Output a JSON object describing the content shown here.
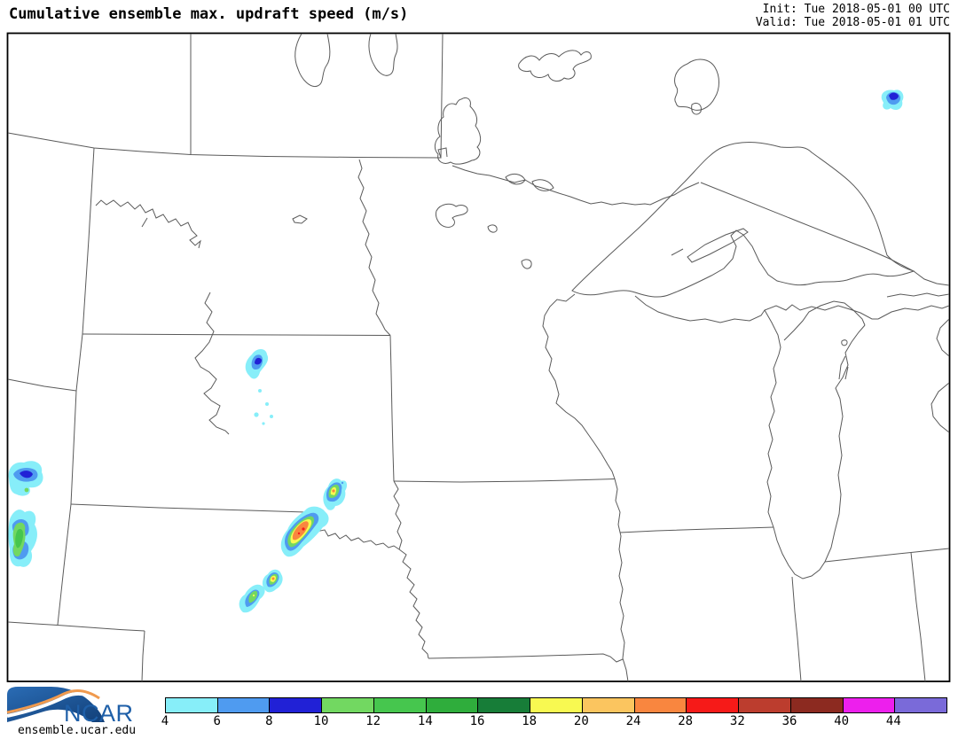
{
  "header": {
    "title": "Cumulative ensemble max. updraft speed (m/s)",
    "init_line": "Init: Tue 2018-05-01 00 UTC",
    "valid_line": "Valid: Tue 2018-05-01 01 UTC"
  },
  "footer": {
    "logo_text": "NCAR",
    "site_url": "ensemble.ucar.edu"
  },
  "colorbar": {
    "ticks": [
      "4",
      "6",
      "8",
      "10",
      "12",
      "14",
      "16",
      "18",
      "20",
      "24",
      "28",
      "32",
      "36",
      "40",
      "44"
    ],
    "colors": [
      "#87EEF9",
      "#4F9BF0",
      "#2121D6",
      "#72D861",
      "#46C64E",
      "#2FAD3C",
      "#177D38",
      "#F8F951",
      "#FBC55F",
      "#F9863F",
      "#F61A18",
      "#BC3D2E",
      "#8C2A20",
      "#ED1FED",
      "#7A6AD9"
    ],
    "min_value": 4,
    "max_value": 48
  },
  "brand": {
    "logo_blue": "#1e5fa8",
    "logo_dark_blue": "#16477f",
    "logo_swoosh_orange": "#f09a4e"
  },
  "map_style": {
    "border_line_color": "#5a5a5a",
    "frame_color": "#000000",
    "background": "#ffffff"
  }
}
